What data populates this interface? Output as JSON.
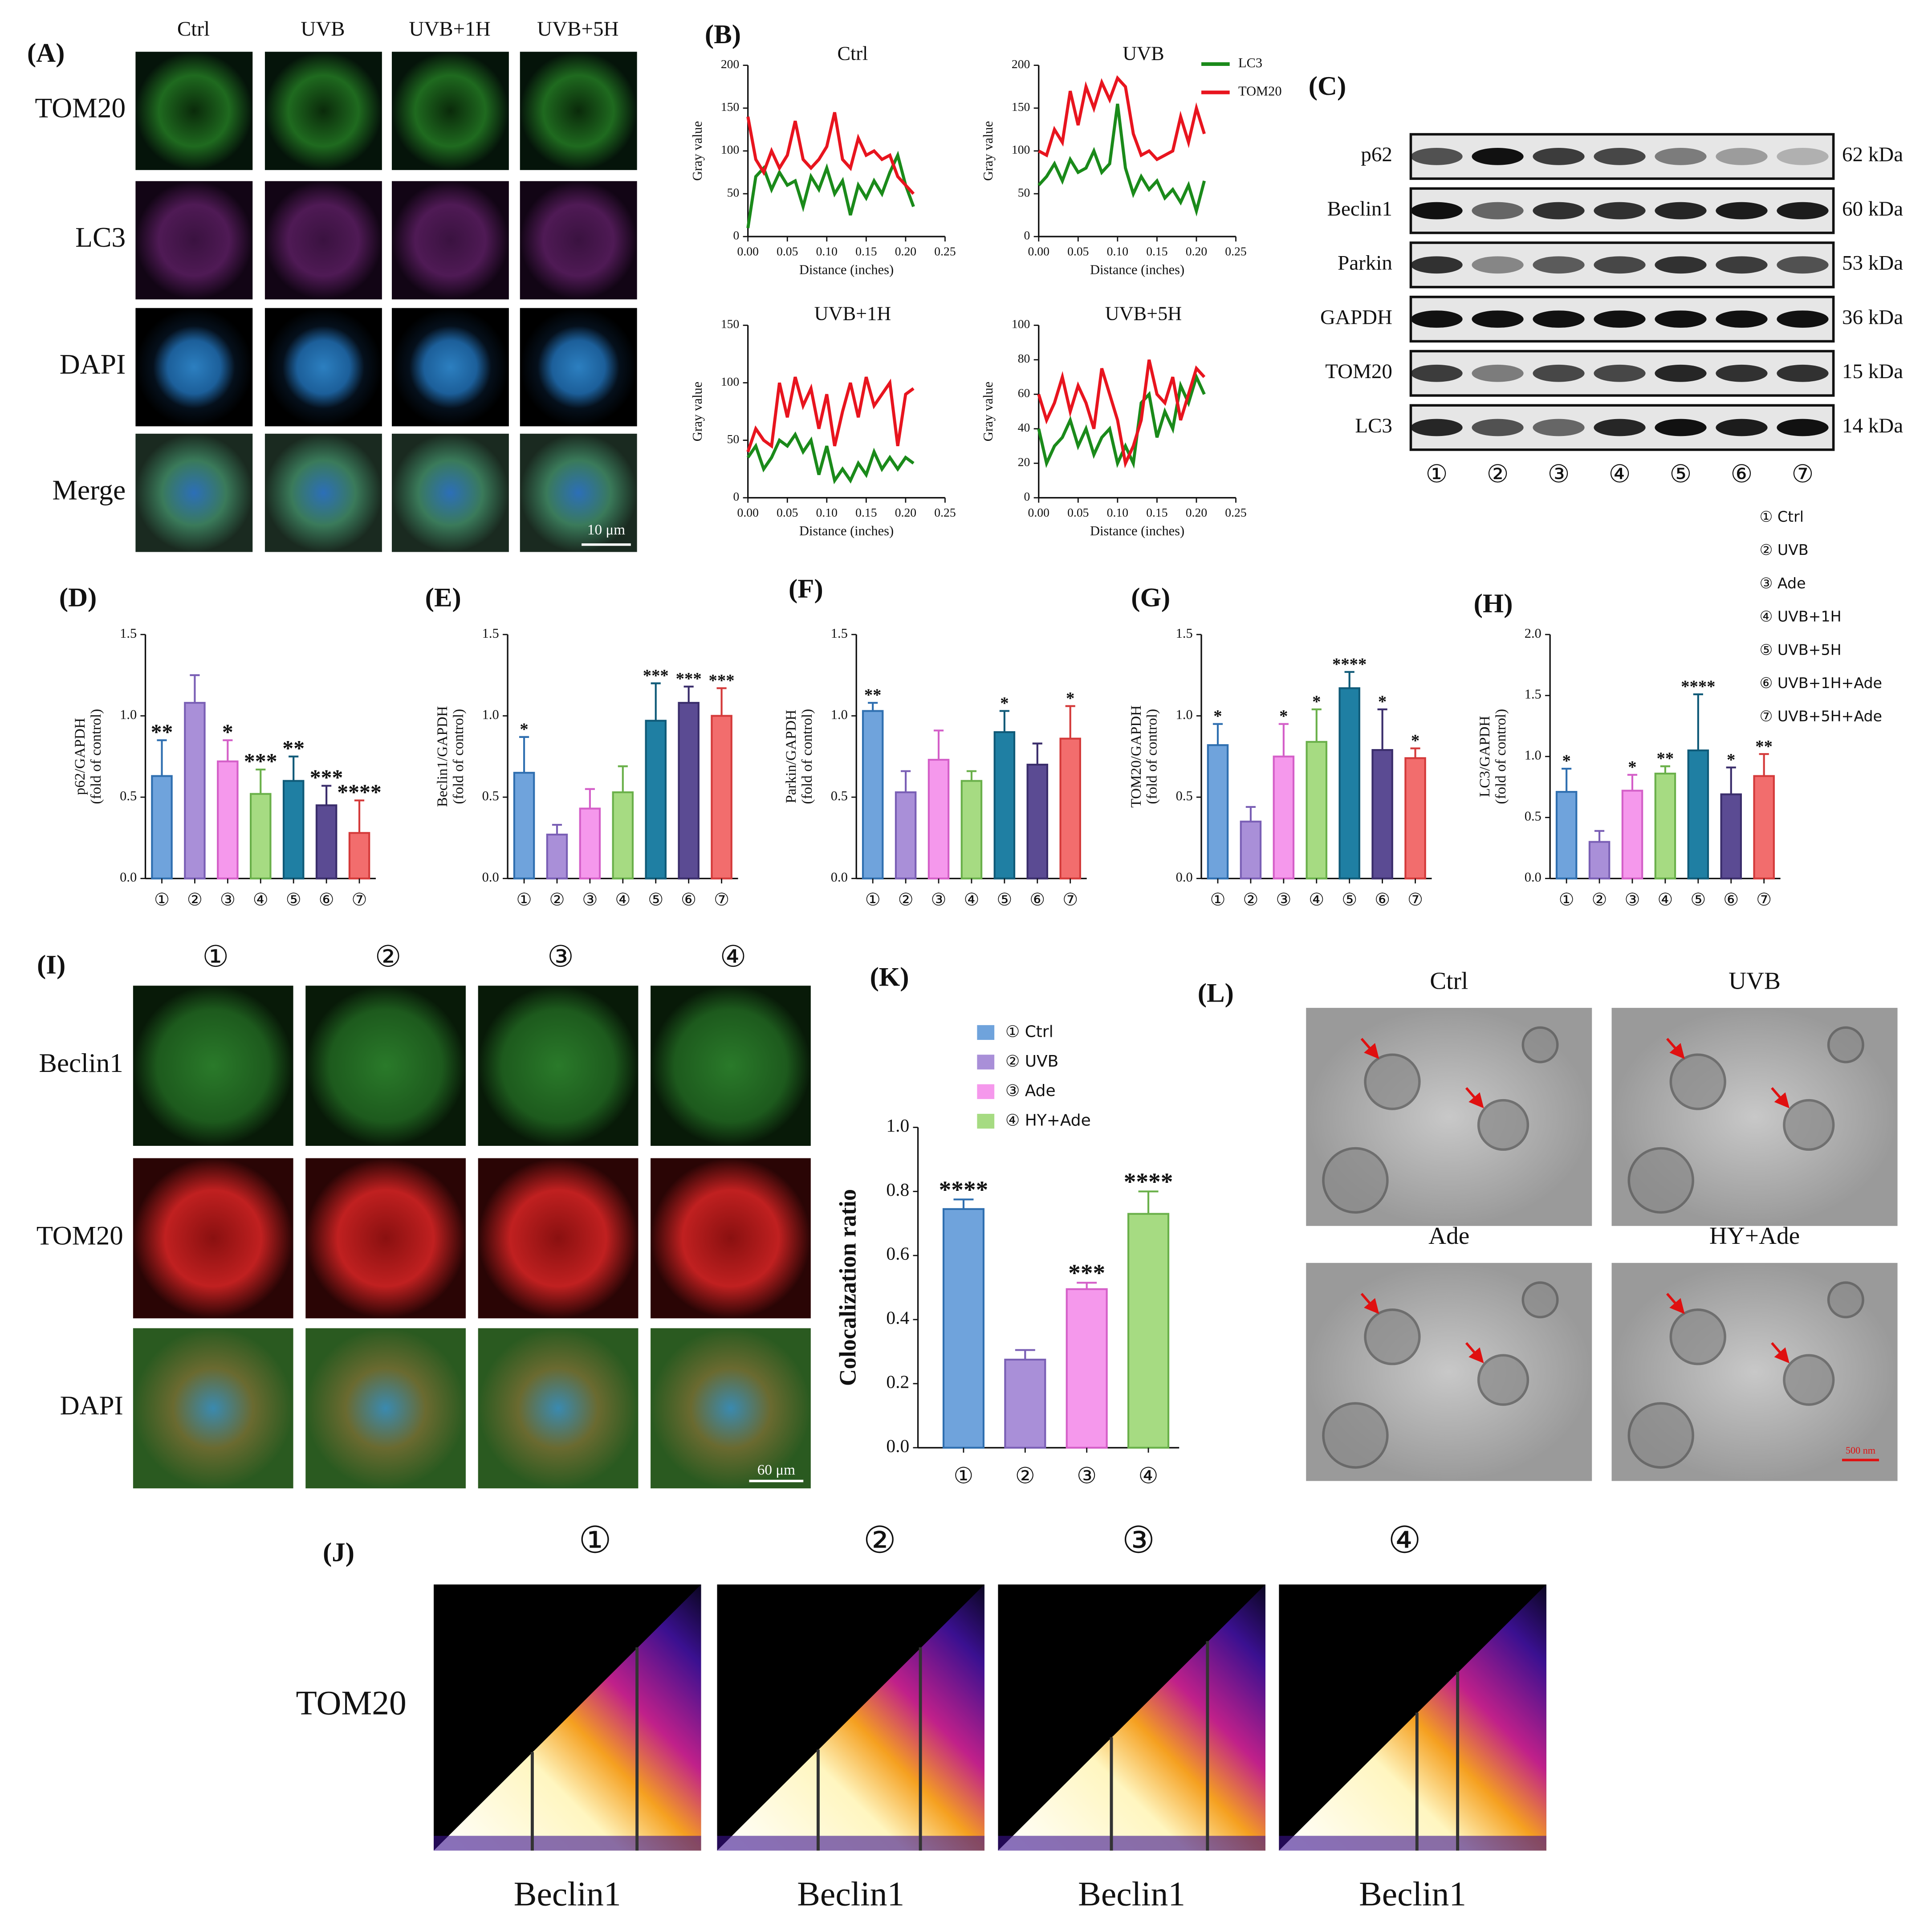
{
  "panel_labels": [
    "(A)",
    "(B)",
    "(C)",
    "(D)",
    "(E)",
    "(F)",
    "(G)",
    "(H)",
    "(I)",
    "(J)",
    "(K)",
    "(L)"
  ],
  "panel_a": {
    "columns": [
      "Ctrl",
      "UVB",
      "UVB+1H",
      "UVB+5H"
    ],
    "rows": [
      "TOM20",
      "LC3",
      "DAPI",
      "Merge"
    ],
    "scale_bar": "10 μm"
  },
  "panel_c": {
    "bands": [
      {
        "name": "p62",
        "size": "62 kDa"
      },
      {
        "name": "Beclin1",
        "size": "60 kDa"
      },
      {
        "name": "Parkin",
        "size": "53 kDa"
      },
      {
        "name": "GAPDH",
        "size": "36 kDa"
      },
      {
        "name": "TOM20",
        "size": "15 kDa"
      },
      {
        "name": "LC3",
        "size": "14 kDa"
      }
    ],
    "lanes": [
      "①",
      "②",
      "③",
      "④",
      "⑤",
      "⑥",
      "⑦"
    ],
    "key": [
      "① Ctrl",
      "② UVB",
      "③ Ade",
      "④ UVB+1H",
      "⑤ UVB+5H",
      "⑥ UVB+1H+Ade",
      "⑦ UVB+5H+Ade"
    ]
  },
  "panel_i": {
    "columns": [
      "①",
      "②",
      "③",
      "④"
    ],
    "rows": [
      "Beclin1",
      "TOM20",
      "DAPI"
    ],
    "scale_bar": "60 μm"
  },
  "panel_j": {
    "columns": [
      "①",
      "②",
      "③",
      "④"
    ],
    "y_label": "TOM20",
    "x_label": "Beclin1"
  },
  "panel_l": {
    "labels": [
      "Ctrl",
      "UVB",
      "Ade",
      "HY+Ade"
    ],
    "scale_bar": "500 nm"
  },
  "chart_data": [
    {
      "type": "line",
      "title": "Ctrl",
      "xlabel": "Distance (inches)",
      "ylabel": "Gray value",
      "x": [
        0,
        0.01,
        0.02,
        0.03,
        0.04,
        0.05,
        0.06,
        0.07,
        0.08,
        0.09,
        0.1,
        0.11,
        0.12,
        0.13,
        0.14,
        0.15,
        0.16,
        0.17,
        0.18,
        0.19,
        0.2,
        0.21
      ],
      "xlim": [
        0,
        0.25
      ],
      "xticks": [
        {
          "value": 0,
          "label": "0.00"
        },
        0.05,
        {
          "value": 0.1,
          "label": "0.10"
        },
        0.15,
        {
          "value": 0.2,
          "label": "0.20"
        },
        0.25
      ],
      "ylim": [
        0,
        200
      ],
      "yticks": [
        0,
        50,
        100,
        150,
        200
      ],
      "series": [
        {
          "color": "#1a8a1a",
          "values": [
            10,
            70,
            80,
            55,
            75,
            60,
            65,
            35,
            70,
            55,
            80,
            50,
            65,
            25,
            60,
            45,
            65,
            50,
            75,
            95,
            60,
            35
          ]
        },
        {
          "color": "#e8141e",
          "values": [
            140,
            90,
            75,
            100,
            80,
            95,
            135,
            90,
            80,
            90,
            105,
            145,
            90,
            80,
            115,
            95,
            100,
            90,
            95,
            70,
            60,
            50
          ]
        }
      ]
    },
    {
      "type": "line",
      "title": "UVB",
      "xlabel": "Distance (inches)",
      "ylabel": "Gray value",
      "legend": true,
      "x": [
        0,
        0.01,
        0.02,
        0.03,
        0.04,
        0.05,
        0.06,
        0.07,
        0.08,
        0.09,
        0.1,
        0.11,
        0.12,
        0.13,
        0.14,
        0.15,
        0.16,
        0.17,
        0.18,
        0.19,
        0.2,
        0.21
      ],
      "xlim": [
        0,
        0.25
      ],
      "xticks": [
        {
          "value": 0,
          "label": "0.00"
        },
        0.05,
        {
          "value": 0.1,
          "label": "0.10"
        },
        0.15,
        {
          "value": 0.2,
          "label": "0.20"
        },
        0.25
      ],
      "ylim": [
        0,
        200
      ],
      "yticks": [
        0,
        50,
        100,
        150,
        200
      ],
      "series": [
        {
          "name": "LC3",
          "color": "#1a8a1a",
          "values": [
            60,
            70,
            85,
            65,
            90,
            75,
            80,
            100,
            75,
            85,
            155,
            80,
            50,
            70,
            55,
            65,
            45,
            55,
            40,
            60,
            30,
            65
          ]
        },
        {
          "name": "TOM20",
          "color": "#e8141e",
          "values": [
            100,
            95,
            125,
            110,
            170,
            130,
            175,
            150,
            180,
            160,
            185,
            175,
            120,
            95,
            100,
            90,
            95,
            100,
            140,
            110,
            150,
            120
          ]
        }
      ]
    },
    {
      "type": "line",
      "title": "UVB+1H",
      "xlabel": "Distance (inches)",
      "ylabel": "Gray value",
      "x": [
        0,
        0.01,
        0.02,
        0.03,
        0.04,
        0.05,
        0.06,
        0.07,
        0.08,
        0.09,
        0.1,
        0.11,
        0.12,
        0.13,
        0.14,
        0.15,
        0.16,
        0.17,
        0.18,
        0.19,
        0.2,
        0.21
      ],
      "xlim": [
        0,
        0.25
      ],
      "xticks": [
        {
          "value": 0,
          "label": "0.00"
        },
        0.05,
        {
          "value": 0.1,
          "label": "0.10"
        },
        0.15,
        {
          "value": 0.2,
          "label": "0.20"
        },
        0.25
      ],
      "ylim": [
        0,
        150
      ],
      "yticks": [
        0,
        50,
        100,
        150
      ],
      "series": [
        {
          "color": "#1a8a1a",
          "values": [
            35,
            45,
            25,
            35,
            50,
            45,
            55,
            40,
            50,
            20,
            45,
            15,
            25,
            15,
            30,
            20,
            40,
            25,
            35,
            25,
            35,
            30
          ]
        },
        {
          "color": "#e8141e",
          "values": [
            40,
            60,
            50,
            45,
            100,
            70,
            105,
            80,
            95,
            60,
            90,
            45,
            75,
            100,
            70,
            105,
            80,
            90,
            100,
            45,
            90,
            95
          ]
        }
      ]
    },
    {
      "type": "line",
      "title": "UVB+5H",
      "xlabel": "Distance (inches)",
      "ylabel": "Gray value",
      "x": [
        0,
        0.01,
        0.02,
        0.03,
        0.04,
        0.05,
        0.06,
        0.07,
        0.08,
        0.09,
        0.1,
        0.11,
        0.12,
        0.13,
        0.14,
        0.15,
        0.16,
        0.17,
        0.18,
        0.19,
        0.2,
        0.21
      ],
      "xlim": [
        0,
        0.25
      ],
      "xticks": [
        {
          "value": 0,
          "label": "0.00"
        },
        0.05,
        {
          "value": 0.1,
          "label": "0.10"
        },
        0.15,
        {
          "value": 0.2,
          "label": "0.20"
        },
        0.25
      ],
      "ylim": [
        0,
        100
      ],
      "yticks": [
        0,
        20,
        40,
        60,
        80,
        100
      ],
      "series": [
        {
          "color": "#1a8a1a",
          "values": [
            40,
            20,
            30,
            35,
            45,
            30,
            40,
            25,
            35,
            40,
            20,
            30,
            20,
            55,
            60,
            35,
            50,
            40,
            65,
            55,
            70,
            60
          ]
        },
        {
          "color": "#e8141e",
          "values": [
            60,
            45,
            55,
            70,
            50,
            65,
            55,
            40,
            75,
            60,
            45,
            20,
            30,
            45,
            80,
            60,
            55,
            70,
            45,
            60,
            75,
            70
          ]
        }
      ]
    },
    {
      "type": "bar",
      "ylabel": "p62/GAPDH",
      "ylabel2": "(fold of control)",
      "categories": [
        "①",
        "②",
        "③",
        "④",
        "⑤",
        "⑥",
        "⑦"
      ],
      "values": [
        0.63,
        1.08,
        0.72,
        0.52,
        0.6,
        0.45,
        0.28
      ],
      "errors": [
        0.22,
        0.17,
        0.13,
        0.15,
        0.15,
        0.12,
        0.2
      ],
      "annotations": [
        "**",
        null,
        "*",
        "***",
        "**",
        "***",
        "****"
      ],
      "colors": [
        "#6fa3dc",
        "#a98fd8",
        "#f598ec",
        "#a6db82",
        "#1f7fa3",
        "#5b4b93",
        "#f26d6d"
      ],
      "edge_colors": [
        "#2f6fb0",
        "#7a5fb5",
        "#d45fc8",
        "#6ab04a",
        "#0f5a78",
        "#3a2d6b",
        "#d43a3a"
      ],
      "ylim": [
        0,
        1.5
      ],
      "yticks": [
        {
          "value": 0,
          "label": "0.0"
        },
        0.5,
        {
          "value": 1,
          "label": "1.0"
        },
        1.5
      ]
    },
    {
      "type": "bar",
      "ylabel": "Beclin1/GAPDH",
      "ylabel2": "(fold of control)",
      "categories": [
        "①",
        "②",
        "③",
        "④",
        "⑤",
        "⑥",
        "⑦"
      ],
      "values": [
        0.65,
        0.27,
        0.43,
        0.53,
        0.97,
        1.08,
        1.0
      ],
      "errors": [
        0.22,
        0.06,
        0.12,
        0.16,
        0.23,
        0.1,
        0.17
      ],
      "annotations": [
        "*",
        null,
        null,
        null,
        "***",
        "***",
        "***"
      ],
      "colors": [
        "#6fa3dc",
        "#a98fd8",
        "#f598ec",
        "#a6db82",
        "#1f7fa3",
        "#5b4b93",
        "#f26d6d"
      ],
      "edge_colors": [
        "#2f6fb0",
        "#7a5fb5",
        "#d45fc8",
        "#6ab04a",
        "#0f5a78",
        "#3a2d6b",
        "#d43a3a"
      ],
      "ylim": [
        0,
        1.5
      ],
      "yticks": [
        {
          "value": 0,
          "label": "0.0"
        },
        0.5,
        {
          "value": 1,
          "label": "1.0"
        },
        1.5
      ]
    },
    {
      "type": "bar",
      "ylabel": "Parkin/GAPDH",
      "ylabel2": "(fold of control)",
      "categories": [
        "①",
        "②",
        "③",
        "④",
        "⑤",
        "⑥",
        "⑦"
      ],
      "values": [
        1.03,
        0.53,
        0.73,
        0.6,
        0.9,
        0.7,
        0.86
      ],
      "errors": [
        0.05,
        0.13,
        0.18,
        0.06,
        0.13,
        0.13,
        0.2
      ],
      "annotations": [
        "**",
        null,
        null,
        null,
        "*",
        null,
        "*"
      ],
      "colors": [
        "#6fa3dc",
        "#a98fd8",
        "#f598ec",
        "#a6db82",
        "#1f7fa3",
        "#5b4b93",
        "#f26d6d"
      ],
      "edge_colors": [
        "#2f6fb0",
        "#7a5fb5",
        "#d45fc8",
        "#6ab04a",
        "#0f5a78",
        "#3a2d6b",
        "#d43a3a"
      ],
      "ylim": [
        0,
        1.5
      ],
      "yticks": [
        {
          "value": 0,
          "label": "0.0"
        },
        0.5,
        {
          "value": 1,
          "label": "1.0"
        },
        1.5
      ]
    },
    {
      "type": "bar",
      "ylabel": "TOM20/GAPDH",
      "ylabel2": "(fold of control)",
      "categories": [
        "①",
        "②",
        "③",
        "④",
        "⑤",
        "⑥",
        "⑦"
      ],
      "values": [
        0.82,
        0.35,
        0.75,
        0.84,
        1.17,
        0.79,
        0.74
      ],
      "errors": [
        0.13,
        0.09,
        0.2,
        0.2,
        0.1,
        0.25,
        0.06
      ],
      "annotations": [
        "*",
        null,
        "*",
        "*",
        "****",
        "*",
        "*"
      ],
      "colors": [
        "#6fa3dc",
        "#a98fd8",
        "#f598ec",
        "#a6db82",
        "#1f7fa3",
        "#5b4b93",
        "#f26d6d"
      ],
      "edge_colors": [
        "#2f6fb0",
        "#7a5fb5",
        "#d45fc8",
        "#6ab04a",
        "#0f5a78",
        "#3a2d6b",
        "#d43a3a"
      ],
      "ylim": [
        0,
        1.5
      ],
      "yticks": [
        {
          "value": 0,
          "label": "0.0"
        },
        0.5,
        {
          "value": 1,
          "label": "1.0"
        },
        1.5
      ]
    },
    {
      "type": "bar",
      "ylabel": "LC3/GAPDH",
      "ylabel2": "(fold of control)",
      "categories": [
        "①",
        "②",
        "③",
        "④",
        "⑤",
        "⑥",
        "⑦"
      ],
      "values": [
        0.71,
        0.3,
        0.72,
        0.86,
        1.05,
        0.69,
        0.84
      ],
      "errors": [
        0.19,
        0.09,
        0.13,
        0.06,
        0.46,
        0.22,
        0.18
      ],
      "annotations": [
        "*",
        null,
        "*",
        "**",
        "****",
        "*",
        "**"
      ],
      "colors": [
        "#6fa3dc",
        "#a98fd8",
        "#f598ec",
        "#a6db82",
        "#1f7fa3",
        "#5b4b93",
        "#f26d6d"
      ],
      "edge_colors": [
        "#2f6fb0",
        "#7a5fb5",
        "#d45fc8",
        "#6ab04a",
        "#0f5a78",
        "#3a2d6b",
        "#d43a3a"
      ],
      "ylim": [
        0,
        2
      ],
      "yticks": [
        {
          "value": 0,
          "label": "0.0"
        },
        0.5,
        {
          "value": 1,
          "label": "1.0"
        },
        1.5,
        {
          "value": 2,
          "label": "2.0"
        }
      ]
    },
    {
      "type": "bar",
      "ylabel": "Colocalization ratio",
      "categories": [
        "①",
        "②",
        "③",
        "④"
      ],
      "legend_labels": [
        "① Ctrl",
        "② UVB",
        "③ Ade",
        "④ HY+Ade"
      ],
      "values": [
        0.745,
        0.275,
        0.495,
        0.73
      ],
      "errors": [
        0.03,
        0.03,
        0.02,
        0.07
      ],
      "annotations": [
        "****",
        null,
        "***",
        "****"
      ],
      "colors": [
        "#6fa3dc",
        "#a98fd8",
        "#f598ec",
        "#a6db82"
      ],
      "edge_colors": [
        "#2f6fb0",
        "#7a5fb5",
        "#d45fc8",
        "#6ab04a"
      ],
      "ylim": [
        0,
        1
      ],
      "yticks": [
        {
          "value": 0,
          "label": "0.0"
        },
        0.2,
        0.4,
        0.6,
        0.8,
        {
          "value": 1,
          "label": "1.0"
        }
      ]
    }
  ]
}
